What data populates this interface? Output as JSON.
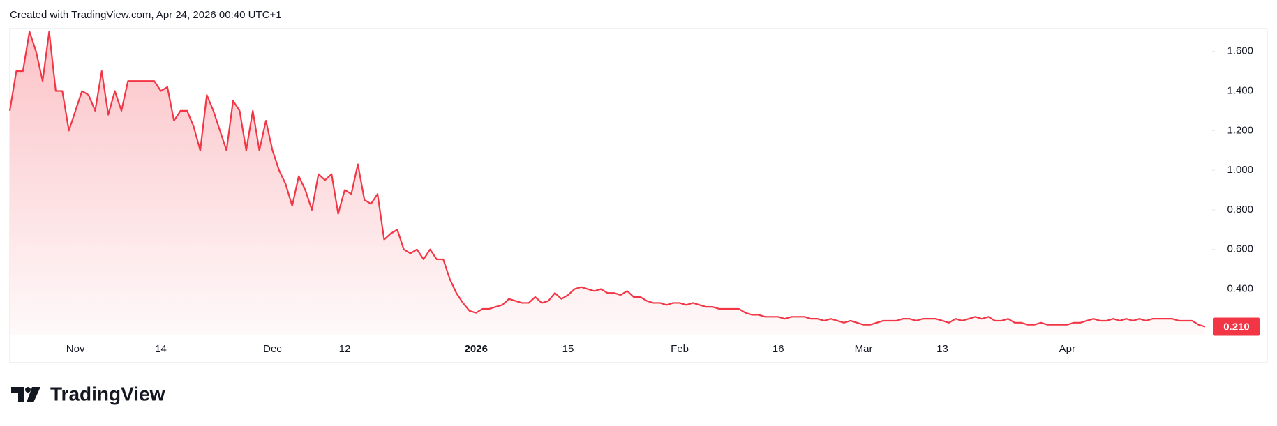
{
  "chart_data": {
    "type": "area",
    "title": "Created with TradingView.com, Apr 24, 2026 00:40 UTC+1",
    "brand": "TradingView",
    "color": "#f23645",
    "categories": [
      null,
      null,
      null,
      null,
      null,
      null,
      null,
      null,
      null,
      null,
      "Nov",
      null,
      null,
      null,
      null,
      null,
      null,
      null,
      null,
      null,
      null,
      null,
      null,
      "14",
      null,
      null,
      null,
      null,
      null,
      null,
      null,
      null,
      null,
      null,
      null,
      null,
      null,
      null,
      null,
      null,
      "Dec",
      null,
      null,
      null,
      null,
      null,
      null,
      null,
      null,
      null,
      null,
      "12",
      null,
      null,
      null,
      null,
      null,
      null,
      null,
      null,
      null,
      null,
      null,
      null,
      null,
      null,
      null,
      null,
      null,
      null,
      null,
      "2026",
      null,
      null,
      null,
      null,
      null,
      null,
      null,
      null,
      null,
      null,
      null,
      null,
      null,
      "15",
      null,
      null,
      null,
      null,
      null,
      null,
      null,
      null,
      null,
      null,
      null,
      null,
      null,
      null,
      null,
      null,
      "Feb",
      null,
      null,
      null,
      null,
      null,
      null,
      null,
      null,
      null,
      null,
      null,
      null,
      null,
      null,
      "16",
      null,
      null,
      null,
      null,
      null,
      null,
      null,
      null,
      null,
      null,
      null,
      null,
      "Mar",
      null,
      null,
      null,
      null,
      null,
      null,
      null,
      null,
      null,
      null,
      null,
      "13",
      null,
      null,
      null,
      null,
      null,
      null,
      null,
      null,
      null,
      null,
      null,
      null,
      null,
      null,
      null,
      null,
      null,
      null,
      "Apr",
      null,
      null,
      null,
      null,
      null,
      null,
      null,
      null,
      null,
      null,
      null,
      null,
      null,
      null,
      null,
      null,
      null,
      null,
      null,
      null,
      null
    ],
    "values": [
      1.3,
      1.5,
      1.5,
      1.7,
      1.6,
      1.45,
      1.7,
      1.4,
      1.4,
      1.2,
      1.3,
      1.4,
      1.38,
      1.3,
      1.5,
      1.28,
      1.4,
      1.3,
      1.45,
      1.45,
      1.45,
      1.45,
      1.45,
      1.4,
      1.42,
      1.25,
      1.3,
      1.3,
      1.22,
      1.1,
      1.38,
      1.3,
      1.2,
      1.1,
      1.35,
      1.3,
      1.1,
      1.3,
      1.1,
      1.25,
      1.1,
      1.0,
      0.93,
      0.82,
      0.97,
      0.9,
      0.8,
      0.98,
      0.95,
      0.98,
      0.78,
      0.9,
      0.88,
      1.03,
      0.85,
      0.83,
      0.88,
      0.65,
      0.68,
      0.7,
      0.6,
      0.58,
      0.6,
      0.55,
      0.6,
      0.55,
      0.55,
      0.45,
      0.38,
      0.33,
      0.29,
      0.28,
      0.3,
      0.3,
      0.31,
      0.32,
      0.35,
      0.34,
      0.33,
      0.33,
      0.36,
      0.33,
      0.34,
      0.38,
      0.35,
      0.37,
      0.4,
      0.41,
      0.4,
      0.39,
      0.4,
      0.38,
      0.38,
      0.37,
      0.39,
      0.36,
      0.36,
      0.34,
      0.33,
      0.33,
      0.32,
      0.33,
      0.33,
      0.32,
      0.33,
      0.32,
      0.31,
      0.31,
      0.3,
      0.3,
      0.3,
      0.3,
      0.28,
      0.27,
      0.27,
      0.26,
      0.26,
      0.26,
      0.25,
      0.26,
      0.26,
      0.26,
      0.25,
      0.25,
      0.24,
      0.25,
      0.24,
      0.23,
      0.24,
      0.23,
      0.22,
      0.22,
      0.23,
      0.24,
      0.24,
      0.24,
      0.25,
      0.25,
      0.24,
      0.25,
      0.25,
      0.25,
      0.24,
      0.23,
      0.25,
      0.24,
      0.25,
      0.26,
      0.25,
      0.26,
      0.24,
      0.24,
      0.25,
      0.23,
      0.23,
      0.22,
      0.22,
      0.23,
      0.22,
      0.22,
      0.22,
      0.22,
      0.23,
      0.23,
      0.24,
      0.25,
      0.24,
      0.24,
      0.25,
      0.24,
      0.25,
      0.24,
      0.25,
      0.24,
      0.25,
      0.25,
      0.25,
      0.25,
      0.24,
      0.24,
      0.24,
      0.22,
      0.21
    ],
    "ylim": [
      0.166,
      1.715
    ],
    "yticks": [
      {
        "value": 0.4,
        "label": "0.400"
      },
      {
        "value": 0.6,
        "label": "0.600"
      },
      {
        "value": 0.8,
        "label": "0.800"
      },
      {
        "value": 1.0,
        "label": "1.000"
      },
      {
        "value": 1.2,
        "label": "1.200"
      },
      {
        "value": 1.4,
        "label": "1.400"
      },
      {
        "value": 1.6,
        "label": "1.600"
      }
    ],
    "price_marker": {
      "value": 0.21,
      "label": "0.210"
    }
  }
}
